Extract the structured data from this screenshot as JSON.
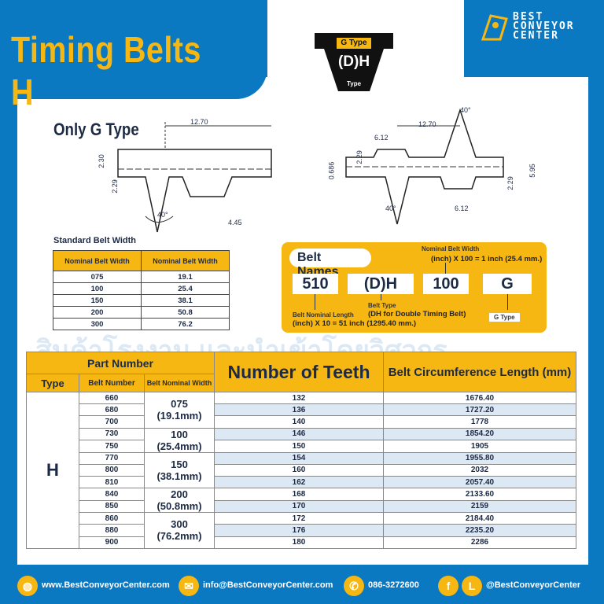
{
  "header": {
    "title": "Timing Belts H",
    "logo": [
      "BEST",
      "CONVEYOR",
      "CENTER"
    ],
    "type_badge": {
      "top": "G Type",
      "main": "(D)H",
      "bottom": "Type"
    }
  },
  "diagram_left": {
    "caption": "Only G Type",
    "dims": [
      "12.70",
      "2.30",
      "2.29",
      "40°",
      "4.45"
    ]
  },
  "diagram_right": {
    "dims": [
      "40°",
      "12.70",
      "6.12",
      "2.29",
      "0.686",
      "5.95",
      "2.29",
      "40°",
      "6.12"
    ]
  },
  "standard_width": {
    "title": "Standard Belt Width",
    "headers": [
      "Nominal Belt Width",
      "Nominal Belt Width"
    ],
    "rows": [
      [
        "075",
        "19.1"
      ],
      [
        "100",
        "25.4"
      ],
      [
        "150",
        "38.1"
      ],
      [
        "200",
        "50.8"
      ],
      [
        "300",
        "76.2"
      ]
    ]
  },
  "belt_names": {
    "title": "Belt Names",
    "parts": [
      "510",
      "(D)H",
      "100",
      "G"
    ],
    "width_note_label": "Nominal Belt Width",
    "width_note": "(inch) X 100 = 1 inch (25.4 mm.)",
    "type_note_label": "Belt Type",
    "type_note": "(DH for Double Timing Belt)",
    "length_note_label": "Belt Nominal Length",
    "length_note": "(inch) X 10 = 51 inch (1295.40 mm.)",
    "g_note": "G Type"
  },
  "watermark": "สินค้าโรงงาน และนำเข้าโดยวิศวกร",
  "main_table": {
    "part_number": "Part Number",
    "type": "Type",
    "belt_number": "Belt Number",
    "belt_width": "Belt Nominal Width",
    "teeth": "Number of Teeth",
    "circ": "Belt Circumference Length (mm)",
    "type_value": "H",
    "widths": [
      [
        "075",
        "(19.1mm)"
      ],
      [
        "100",
        "(25.4mm)"
      ],
      [
        "150",
        "(38.1mm)"
      ],
      [
        "200",
        "(50.8mm)"
      ],
      [
        "300",
        "(76.2mm)"
      ]
    ],
    "rows": [
      [
        "660",
        "132",
        "1676.40"
      ],
      [
        "680",
        "136",
        "1727.20"
      ],
      [
        "700",
        "140",
        "1778"
      ],
      [
        "730",
        "146",
        "1854.20"
      ],
      [
        "750",
        "150",
        "1905"
      ],
      [
        "770",
        "154",
        "1955.80"
      ],
      [
        "800",
        "160",
        "2032"
      ],
      [
        "810",
        "162",
        "2057.40"
      ],
      [
        "840",
        "168",
        "2133.60"
      ],
      [
        "850",
        "170",
        "2159"
      ],
      [
        "860",
        "172",
        "2184.40"
      ],
      [
        "880",
        "176",
        "2235.20"
      ],
      [
        "900",
        "180",
        "2286"
      ]
    ]
  },
  "footer": {
    "web": "www.BestConveyorCenter.com",
    "email": "info@BestConveyorCenter.com",
    "phone": "086-3272600",
    "social": "@BestConveyorCenter"
  },
  "colors": {
    "blue": "#0b78c2",
    "yellow": "#f6b712",
    "navy": "#1d2a44"
  }
}
